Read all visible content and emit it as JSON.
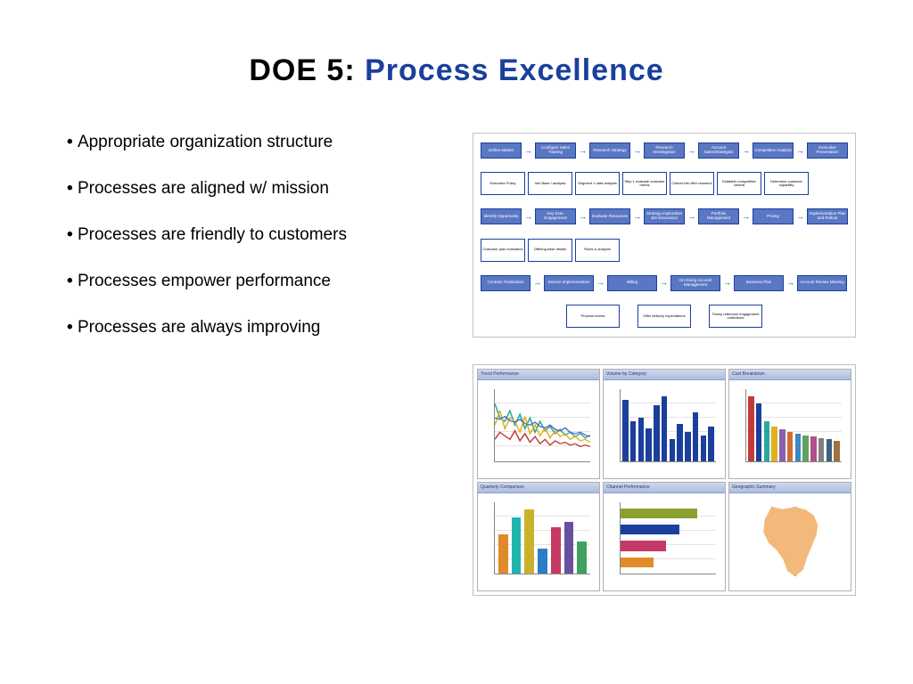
{
  "title_prefix": "DOE 5: ",
  "title_main": "Process Excellence",
  "title_color_prefix": "#000000",
  "title_color_main": "#1a3f9c",
  "bullets": [
    "Appropriate organization structure",
    "Processes are aligned w/ mission",
    "Processes are friendly to customers",
    "Processes empower performance",
    "Processes are always improving"
  ],
  "flowchart": {
    "border_color": "#1a3f9c",
    "highlight_fill": "#5a77c4",
    "highlight_text": "#ffffff",
    "row1": [
      "Define Market",
      "Configure Sales Training",
      "Research Strategy",
      "Research Investigation",
      "Account Sales/Strategies",
      "Competitive Analysis",
      "Executive Presentation"
    ],
    "row2": [
      "Executive Policy",
      "Info Base / analysis",
      "Segment 1 data analysis",
      "Step 1 evaluate customer needs",
      "Critical info offer research",
      "Establish competitive criteria",
      "Determine customer capability"
    ],
    "row3": [
      "Identify Opportunity",
      "Key Exec Engagement",
      "Evaluate Resources",
      "Strategy exploration site Discussion",
      "Portfolio Management",
      "Pricing",
      "Implementation Plan and Rollout"
    ],
    "row4": [
      "Customer plan evaluation",
      "Offering base details",
      "Rules & analysis",
      "",
      "",
      "",
      ""
    ],
    "row5": [
      "Contract Finalization",
      "Service Implementation",
      "Billing",
      "On-Going Account Management",
      "Business Plan",
      "Account Review Meeting"
    ],
    "row6": [
      "Process review",
      "Offer delivery expectations",
      "Timely reference engagement collections"
    ]
  },
  "dashboard": {
    "header_bg_top": "#cdd9ee",
    "header_bg_bottom": "#a9bddf",
    "cells": [
      {
        "type": "line",
        "title": "Trend Performance",
        "ylim": [
          0,
          100
        ],
        "series": [
          {
            "color": "#2aa8a0",
            "points": [
              80,
              60,
              55,
              70,
              50,
              65,
              45,
              60,
              40,
              55,
              42,
              48,
              38,
              44,
              36,
              40,
              34,
              38,
              32,
              36
            ]
          },
          {
            "color": "#e0b020",
            "points": [
              50,
              70,
              45,
              60,
              55,
              40,
              62,
              38,
              50,
              35,
              46,
              32,
              42,
              34,
              38,
              30,
              34,
              28,
              30,
              26
            ]
          },
          {
            "color": "#c43a3a",
            "points": [
              30,
              40,
              35,
              30,
              42,
              28,
              38,
              26,
              34,
              24,
              30,
              22,
              28,
              24,
              26,
              22,
              24,
              20,
              22,
              20
            ]
          },
          {
            "color": "#4a68b8",
            "points": [
              60,
              58,
              62,
              56,
              54,
              58,
              52,
              50,
              54,
              48,
              46,
              50,
              44,
              42,
              46,
              40,
              38,
              40,
              36,
              34
            ]
          }
        ]
      },
      {
        "type": "bar",
        "title": "Volume by Category",
        "bar_color": "#1a3f9c",
        "ylim": [
          0,
          100
        ],
        "values": [
          85,
          55,
          60,
          45,
          78,
          90,
          30,
          52,
          40,
          68,
          35,
          48
        ]
      },
      {
        "type": "bar",
        "title": "Cost Breakdown",
        "ylim": [
          0,
          100
        ],
        "values": [
          90,
          80,
          55,
          48,
          44,
          40,
          38,
          36,
          34,
          32,
          30,
          28
        ],
        "colors": [
          "#c43a3a",
          "#1a3f9c",
          "#2aa8a0",
          "#e0b020",
          "#8a5fb0",
          "#d07030",
          "#3a88c4",
          "#60a060",
          "#b0508a",
          "#808080",
          "#406080",
          "#a07040"
        ]
      },
      {
        "type": "bar",
        "title": "Quarterly Comparison",
        "ylim": [
          0,
          100
        ],
        "values": [
          55,
          78,
          90,
          35,
          65,
          72,
          45
        ],
        "colors": [
          "#e08a2a",
          "#1fb5ad",
          "#c9b22a",
          "#2a7fc4",
          "#c43a64",
          "#6a4fa0",
          "#40a060"
        ],
        "bar_width": 0.1
      },
      {
        "type": "hbar",
        "title": "Channel Performance",
        "xlim": [
          0,
          100
        ],
        "values": [
          80,
          62,
          48,
          35
        ],
        "colors": [
          "#8aa030",
          "#1a3f9c",
          "#c43a64",
          "#e08a2a"
        ]
      },
      {
        "type": "map",
        "title": "Geographic Summary",
        "fill_color": "#f2b97a",
        "border_color": "#c07a30"
      }
    ]
  }
}
